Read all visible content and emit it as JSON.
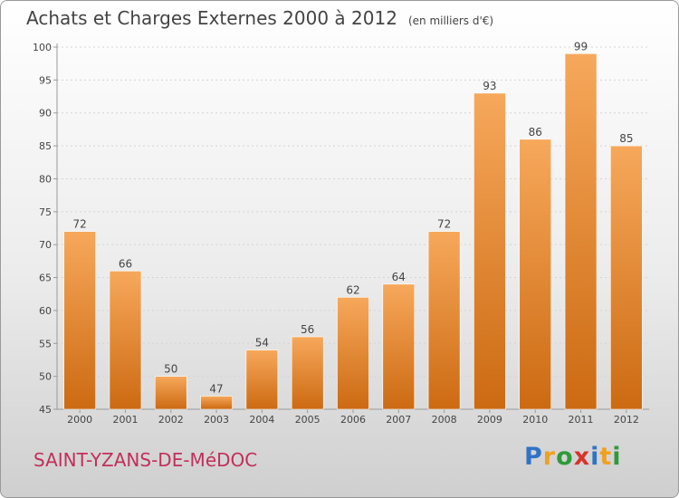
{
  "title": "Achats et Charges Externes 2000 à 2012",
  "unit_note": "(en milliers d'€)",
  "commune": "SAINT-YZANS-DE-MéDOC",
  "logo": {
    "letters": [
      "P",
      "r",
      "o",
      "x",
      "i",
      "t",
      "i"
    ],
    "colors": [
      "#2f73c6",
      "#f0a020",
      "#2f9a3a",
      "#d8332a",
      "#2f73c6",
      "#f0a020",
      "#2f9a3a"
    ]
  },
  "colors": {
    "bar_top": "#f7a85b",
    "bar_bottom": "#cc6a12",
    "text": "#444444",
    "commune": "#c0305a"
  },
  "chart_data": {
    "type": "bar",
    "categories": [
      "2000",
      "2001",
      "2002",
      "2003",
      "2004",
      "2005",
      "2006",
      "2007",
      "2008",
      "2009",
      "2010",
      "2011",
      "2012"
    ],
    "values": [
      72,
      66,
      50,
      47,
      54,
      56,
      62,
      64,
      72,
      93,
      86,
      99,
      85
    ],
    "data_labels": [
      "72",
      "66",
      "50",
      "47",
      "54",
      "56",
      "62",
      "64",
      "72",
      "93",
      "86",
      "99",
      "85"
    ],
    "ylim": [
      45,
      100
    ],
    "yticks": [
      45,
      50,
      55,
      60,
      65,
      70,
      75,
      80,
      85,
      90,
      95,
      100
    ],
    "grid": true
  }
}
